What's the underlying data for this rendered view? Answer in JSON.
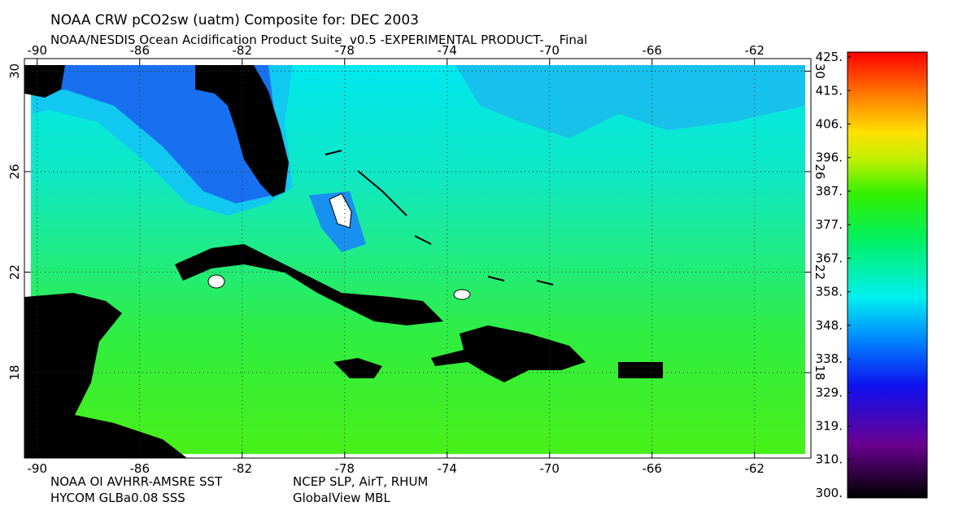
{
  "map": {
    "title": "NOAA CRW pCO2sw (uatm) Composite for: DEC 2003",
    "subtitle": "NOAA/NESDIS Ocean Acidification Product Suite  v0.5 -EXPERIMENTAL PRODUCT-    Final",
    "xlim": [
      -90.5,
      -59.8
    ],
    "ylim": [
      14.6,
      30.5
    ],
    "xticks": [
      -90,
      -86,
      -82,
      -78,
      -74,
      -70,
      -66,
      -62
    ],
    "yticks": [
      30,
      26,
      22,
      18
    ],
    "colorbar": {
      "lim": [
        300,
        425
      ],
      "ticks": [
        {
          "value": 425,
          "label": "425."
        },
        {
          "value": 415.38,
          "label": "415."
        },
        {
          "value": 405.77,
          "label": "406."
        },
        {
          "value": 396.15,
          "label": "396."
        },
        {
          "value": 386.54,
          "label": "387."
        },
        {
          "value": 376.92,
          "label": "377."
        },
        {
          "value": 367.31,
          "label": "367."
        },
        {
          "value": 357.69,
          "label": "358."
        },
        {
          "value": 348.08,
          "label": "348."
        },
        {
          "value": 338.46,
          "label": "338."
        },
        {
          "value": 328.85,
          "label": "329."
        },
        {
          "value": 319.23,
          "label": "319."
        },
        {
          "value": 309.62,
          "label": "310."
        },
        {
          "value": 300,
          "label": "300."
        }
      ]
    },
    "sources": [
      "NOAA OI AVHRR-AMSRE SST",
      "NCEP SLP, AirT, RHUM",
      "HYCOM GLBa0.08 SSS",
      "GlobalView MBL"
    ]
  }
}
